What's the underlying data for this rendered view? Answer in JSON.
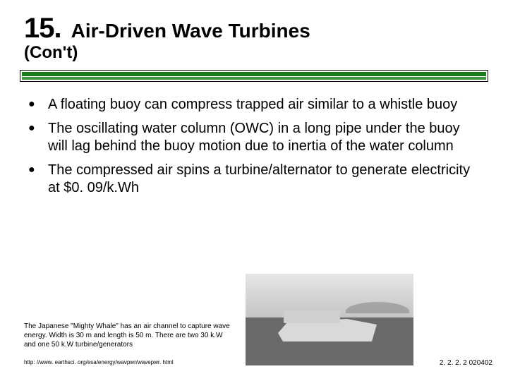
{
  "header": {
    "number": "15.",
    "title": "Air-Driven Wave Turbines",
    "subtitle": "(Con't)"
  },
  "rule": {
    "outer_border": "#000000",
    "top_color": "#1a7a1a",
    "bottom_color": "#2a8a2a"
  },
  "bullets": [
    " A floating buoy can compress trapped air similar to a whistle buoy",
    "The oscillating water column (OWC) in a long pipe under the buoy will lag behind the buoy motion due to inertia of the water column",
    "The compressed air spins a turbine/alternator to generate electricity at $0. 09/k.Wh"
  ],
  "caption": "The Japanese \"Mighty Whale\" has an air channel to capture wave energy. Width is 30 m and length is 50 m. There are two 30 k.W and one 50 k.W turbine/generators",
  "source": "http: //www. earthsci. org/esa/energy/wavpwr/wavepwr. html",
  "code": "2. 2. 2. 2  020402",
  "text_color": "#000000",
  "background_color": "#ffffff",
  "fonts": {
    "number_size_pt": 40,
    "title_size_pt": 28,
    "subtitle_size_pt": 24,
    "bullet_size_pt": 20,
    "caption_size_pt": 10,
    "source_size_pt": 8,
    "code_size_pt": 10
  }
}
